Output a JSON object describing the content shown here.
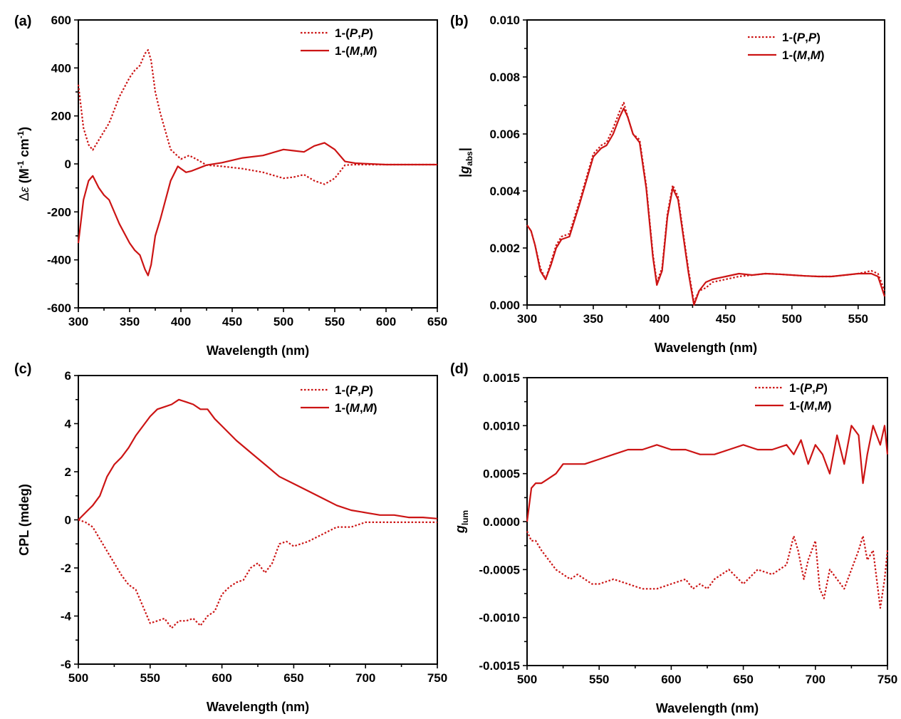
{
  "colors": {
    "series": "#cc1414",
    "axis": "#000000"
  },
  "chart_data": [
    {
      "panel": "(a)",
      "type": "line",
      "xlabel": "Wavelength (nm)",
      "ylabel_parts": [
        "Δ",
        "ε",
        " (M",
        "-1",
        " cm",
        "-1",
        ")"
      ],
      "xlim": [
        300,
        650
      ],
      "ylim": [
        -600,
        600
      ],
      "xticks": [
        300,
        350,
        400,
        450,
        500,
        550,
        600,
        650
      ],
      "yticks": [
        -600,
        -400,
        -200,
        0,
        200,
        400,
        600
      ],
      "ytick_labels": [
        "-600",
        "-400",
        "-200",
        "0",
        "200",
        "400",
        "600"
      ],
      "legend_position": "top-right",
      "series": [
        {
          "name": "1-(P,P)",
          "name_parts": [
            "1-(",
            "P",
            ",",
            "P",
            ")"
          ],
          "style": "dotted",
          "x": [
            300,
            305,
            310,
            314,
            320,
            330,
            340,
            350,
            355,
            360,
            365,
            368,
            371,
            375,
            380,
            390,
            400,
            408,
            415,
            425,
            440,
            460,
            480,
            500,
            510,
            520,
            530,
            540,
            550,
            560,
            570,
            600,
            650
          ],
          "y": [
            330,
            150,
            80,
            58,
            100,
            170,
            280,
            360,
            390,
            410,
            460,
            475,
            430,
            300,
            210,
            60,
            20,
            35,
            20,
            -5,
            -10,
            -20,
            -35,
            -60,
            -55,
            -45,
            -70,
            -85,
            -60,
            -5,
            -3,
            -3,
            -3
          ]
        },
        {
          "name": "1-(M,M)",
          "name_parts": [
            "1-(",
            "M",
            ",",
            "M",
            ")"
          ],
          "style": "solid",
          "x": [
            300,
            305,
            310,
            314,
            320,
            325,
            330,
            340,
            350,
            355,
            360,
            365,
            368,
            371,
            375,
            380,
            390,
            397,
            400,
            405,
            410,
            425,
            440,
            460,
            480,
            500,
            510,
            520,
            530,
            540,
            550,
            560,
            570,
            600,
            650
          ],
          "y": [
            -330,
            -150,
            -70,
            -50,
            -100,
            -130,
            -150,
            -250,
            -330,
            -360,
            -380,
            -440,
            -465,
            -420,
            -300,
            -230,
            -70,
            -10,
            -20,
            -35,
            -30,
            -5,
            5,
            25,
            35,
            60,
            55,
            50,
            75,
            88,
            60,
            10,
            3,
            -3,
            -3
          ]
        }
      ]
    },
    {
      "panel": "(b)",
      "type": "line",
      "xlabel": "Wavelength (nm)",
      "ylabel_parts": [
        "|",
        "g",
        "abs",
        "|"
      ],
      "xlim": [
        300,
        570
      ],
      "ylim": [
        0,
        0.01
      ],
      "xticks": [
        300,
        350,
        400,
        450,
        500,
        550
      ],
      "yticks": [
        0,
        0.002,
        0.004,
        0.006,
        0.008,
        0.01
      ],
      "ytick_labels": [
        "0.000",
        "0.002",
        "0.004",
        "0.006",
        "0.008",
        "0.010"
      ],
      "legend_position": "top-right",
      "series": [
        {
          "name": "1-(P,P)",
          "name_parts": [
            "1-(",
            "P",
            ",",
            "P",
            ")"
          ],
          "style": "dotted",
          "x": [
            300,
            303,
            306,
            310,
            314,
            318,
            322,
            326,
            332,
            340,
            350,
            356,
            360,
            365,
            370,
            373,
            376,
            380,
            385,
            390,
            395,
            398,
            402,
            406,
            410,
            414,
            418,
            422,
            426,
            430,
            435,
            440,
            450,
            460,
            470,
            480,
            490,
            500,
            510,
            520,
            530,
            540,
            550,
            560,
            565,
            570
          ],
          "y": [
            0.0028,
            0.0026,
            0.0021,
            0.0013,
            0.0009,
            0.0015,
            0.0021,
            0.0024,
            0.0025,
            0.0037,
            0.0053,
            0.0056,
            0.0057,
            0.0062,
            0.0068,
            0.0071,
            0.0066,
            0.006,
            0.0058,
            0.0042,
            0.0018,
            0.0008,
            0.0013,
            0.0032,
            0.0042,
            0.0038,
            0.0025,
            0.0012,
            0.0001,
            0.0005,
            0.0006,
            0.0008,
            0.0009,
            0.001,
            0.00105,
            0.0011,
            0.00108,
            0.00105,
            0.00102,
            0.001,
            0.001,
            0.00105,
            0.0011,
            0.0012,
            0.0011,
            0.0005
          ]
        },
        {
          "name": "1-(M,M)",
          "name_parts": [
            "1-(",
            "M",
            ",",
            "M",
            ")"
          ],
          "style": "solid",
          "x": [
            300,
            303,
            306,
            310,
            314,
            318,
            322,
            326,
            332,
            340,
            350,
            356,
            360,
            365,
            370,
            373,
            376,
            380,
            385,
            390,
            395,
            398,
            402,
            406,
            410,
            414,
            418,
            422,
            426,
            430,
            435,
            440,
            450,
            460,
            470,
            480,
            490,
            500,
            510,
            520,
            530,
            540,
            550,
            560,
            565,
            570
          ],
          "y": [
            0.0028,
            0.0026,
            0.0021,
            0.0012,
            0.0009,
            0.0014,
            0.002,
            0.0023,
            0.0024,
            0.0036,
            0.0052,
            0.0055,
            0.0056,
            0.006,
            0.0066,
            0.0069,
            0.0066,
            0.006,
            0.0057,
            0.0041,
            0.0017,
            0.0007,
            0.0012,
            0.0031,
            0.0041,
            0.0037,
            0.0024,
            0.0011,
            0.0,
            0.0005,
            0.0008,
            0.0009,
            0.001,
            0.0011,
            0.00105,
            0.0011,
            0.00108,
            0.00105,
            0.00102,
            0.001,
            0.001,
            0.00105,
            0.0011,
            0.0011,
            0.001,
            0.0003
          ]
        }
      ]
    },
    {
      "panel": "(c)",
      "type": "line",
      "xlabel": "Wavelength (nm)",
      "ylabel_parts": [
        "CPL (mdeg)"
      ],
      "xlim": [
        500,
        750
      ],
      "ylim": [
        -6,
        6
      ],
      "xticks": [
        500,
        550,
        600,
        650,
        700,
        750
      ],
      "yticks": [
        -6,
        -4,
        -2,
        0,
        2,
        4,
        6
      ],
      "ytick_labels": [
        "-6",
        "-4",
        "-2",
        "0",
        "2",
        "4",
        "6"
      ],
      "legend_position": "top-right",
      "series": [
        {
          "name": "1-(P,P)",
          "name_parts": [
            "1-(",
            "P",
            ",",
            "P",
            ")"
          ],
          "style": "dotted",
          "x": [
            500,
            505,
            510,
            515,
            520,
            525,
            530,
            535,
            540,
            545,
            550,
            555,
            560,
            565,
            570,
            575,
            580,
            585,
            590,
            595,
            600,
            605,
            610,
            615,
            620,
            625,
            630,
            635,
            640,
            645,
            650,
            660,
            670,
            680,
            690,
            700,
            710,
            720,
            730,
            740,
            750
          ],
          "y": [
            0,
            -0.1,
            -0.3,
            -0.8,
            -1.3,
            -1.8,
            -2.3,
            -2.7,
            -2.9,
            -3.6,
            -4.3,
            -4.2,
            -4.1,
            -4.5,
            -4.2,
            -4.2,
            -4.1,
            -4.4,
            -4.0,
            -3.8,
            -3.1,
            -2.8,
            -2.6,
            -2.5,
            -2.0,
            -1.8,
            -2.2,
            -1.8,
            -1.0,
            -0.9,
            -1.1,
            -0.9,
            -0.6,
            -0.3,
            -0.3,
            -0.1,
            -0.1,
            -0.1,
            -0.1,
            -0.1,
            -0.1
          ]
        },
        {
          "name": "1-(M,M)",
          "name_parts": [
            "1-(",
            "M",
            ",",
            "M",
            ")"
          ],
          "style": "solid",
          "x": [
            500,
            505,
            510,
            515,
            520,
            525,
            530,
            535,
            540,
            545,
            550,
            555,
            560,
            565,
            570,
            575,
            580,
            585,
            590,
            595,
            600,
            605,
            610,
            620,
            630,
            640,
            650,
            660,
            670,
            680,
            690,
            700,
            710,
            720,
            730,
            740,
            750
          ],
          "y": [
            0,
            0.3,
            0.6,
            1.0,
            1.8,
            2.3,
            2.6,
            3.0,
            3.5,
            3.9,
            4.3,
            4.6,
            4.7,
            4.8,
            5.0,
            4.9,
            4.8,
            4.6,
            4.6,
            4.2,
            3.9,
            3.6,
            3.3,
            2.8,
            2.3,
            1.8,
            1.5,
            1.2,
            0.9,
            0.6,
            0.4,
            0.3,
            0.2,
            0.2,
            0.1,
            0.1,
            0.05
          ]
        }
      ]
    },
    {
      "panel": "(d)",
      "type": "line",
      "xlabel": "Wavelength (nm)",
      "ylabel_parts": [
        "g",
        "lum"
      ],
      "xlim": [
        500,
        750
      ],
      "ylim": [
        -0.0015,
        0.0015
      ],
      "xticks": [
        500,
        550,
        600,
        650,
        700,
        750
      ],
      "yticks": [
        -0.0015,
        -0.001,
        -0.0005,
        0,
        0.0005,
        0.001,
        0.0015
      ],
      "ytick_labels": [
        "-0.0015",
        "-0.0010",
        "-0.0005",
        "0.0000",
        "0.0005",
        "0.0010",
        "0.0015"
      ],
      "legend_position": "top-right",
      "series": [
        {
          "name": "1-(P,P)",
          "name_parts": [
            "1-(",
            "P",
            ",",
            "P",
            ")"
          ],
          "style": "dotted",
          "x": [
            500,
            503,
            506,
            510,
            515,
            520,
            525,
            530,
            535,
            540,
            545,
            550,
            560,
            570,
            580,
            590,
            600,
            610,
            615,
            620,
            625,
            630,
            640,
            650,
            660,
            670,
            680,
            685,
            688,
            692,
            695,
            700,
            703,
            706,
            710,
            715,
            720,
            725,
            730,
            733,
            736,
            740,
            745,
            748,
            750
          ],
          "y": [
            -0.0001,
            -0.0002,
            -0.0002,
            -0.0003,
            -0.0004,
            -0.0005,
            -0.00055,
            -0.0006,
            -0.00055,
            -0.0006,
            -0.00065,
            -0.00065,
            -0.0006,
            -0.00065,
            -0.0007,
            -0.0007,
            -0.00065,
            -0.0006,
            -0.0007,
            -0.00065,
            -0.0007,
            -0.0006,
            -0.0005,
            -0.00065,
            -0.0005,
            -0.00055,
            -0.00045,
            -0.00015,
            -0.0003,
            -0.0006,
            -0.0004,
            -0.0002,
            -0.0007,
            -0.0008,
            -0.0005,
            -0.0006,
            -0.0007,
            -0.0005,
            -0.0003,
            -0.00015,
            -0.0004,
            -0.0003,
            -0.0009,
            -0.0006,
            -0.0003
          ]
        },
        {
          "name": "1-(M,M)",
          "name_parts": [
            "1-(",
            "M",
            ",",
            "M",
            ")"
          ],
          "style": "solid",
          "x": [
            500,
            503,
            506,
            510,
            515,
            520,
            525,
            530,
            540,
            550,
            560,
            570,
            580,
            590,
            600,
            610,
            620,
            630,
            640,
            650,
            660,
            670,
            680,
            685,
            690,
            695,
            700,
            705,
            710,
            715,
            720,
            725,
            730,
            733,
            736,
            740,
            745,
            748,
            750
          ],
          "y": [
            0.0,
            0.00035,
            0.0004,
            0.0004,
            0.00045,
            0.0005,
            0.0006,
            0.0006,
            0.0006,
            0.00065,
            0.0007,
            0.00075,
            0.00075,
            0.0008,
            0.00075,
            0.00075,
            0.0007,
            0.0007,
            0.00075,
            0.0008,
            0.00075,
            0.00075,
            0.0008,
            0.0007,
            0.00085,
            0.0006,
            0.0008,
            0.0007,
            0.0005,
            0.0009,
            0.0006,
            0.001,
            0.0009,
            0.0004,
            0.0007,
            0.001,
            0.0008,
            0.001,
            0.0007
          ]
        }
      ]
    }
  ]
}
